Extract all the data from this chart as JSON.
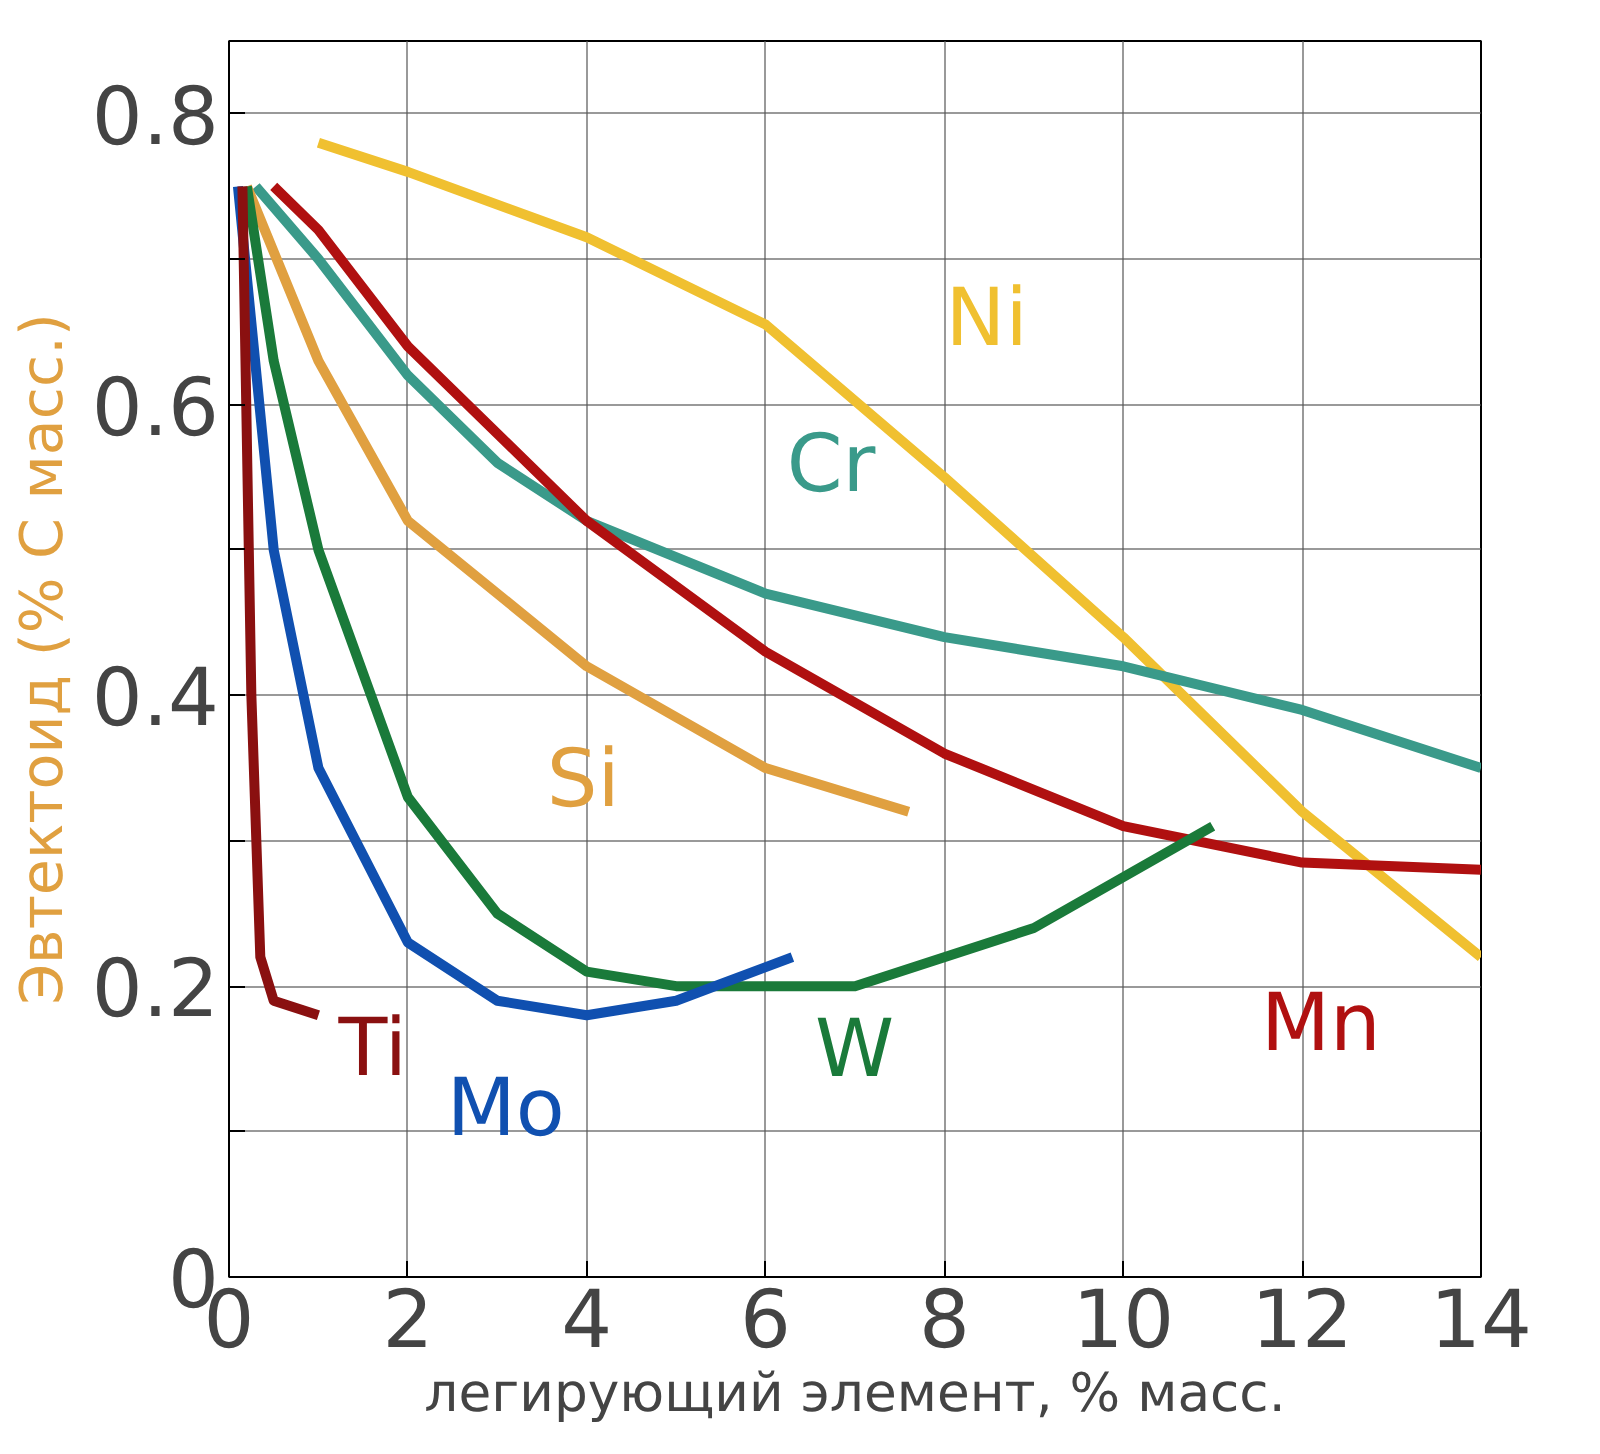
{
  "chart_data": {
    "type": "line",
    "xlabel": "легирующий элемент, % масс.",
    "ylabel": "Эвтектоид (% С масс.)",
    "xlim": [
      0,
      14
    ],
    "ylim": [
      0,
      0.85
    ],
    "xticks": [
      0,
      2,
      4,
      6,
      8,
      10,
      12,
      14
    ],
    "yticks": [
      0,
      {
        "value": 0.1,
        "label": null
      },
      0.2,
      {
        "value": 0.3,
        "label": null
      },
      0.4,
      {
        "value": 0.5,
        "label": null
      },
      0.6,
      {
        "value": 0.7,
        "label": null
      },
      0.8
    ],
    "grid": true,
    "marker": "none",
    "line_style": "solid",
    "series": [
      {
        "name": "Ni",
        "color": "#f0c030",
        "x": [
          1,
          2,
          4,
          6,
          8,
          10,
          12,
          13,
          14
        ],
        "values": [
          0.78,
          0.76,
          0.715,
          0.655,
          0.55,
          0.44,
          0.32,
          0.27,
          0.22
        ]
      },
      {
        "name": "Cr",
        "color": "#3a9a8a",
        "x": [
          0.3,
          1,
          2,
          3,
          4,
          6,
          8,
          10,
          12,
          14
        ],
        "values": [
          0.75,
          0.7,
          0.62,
          0.56,
          0.52,
          0.47,
          0.44,
          0.42,
          0.39,
          0.35
        ]
      },
      {
        "name": "Mn",
        "color": "#b01010",
        "x": [
          0.5,
          1,
          2,
          4,
          6,
          8,
          10,
          12,
          14
        ],
        "values": [
          0.75,
          0.72,
          0.64,
          0.52,
          0.43,
          0.36,
          0.31,
          0.285,
          0.28
        ]
      },
      {
        "name": "Si",
        "color": "#e0a040",
        "x": [
          0.2,
          1,
          2,
          4,
          6,
          7.6
        ],
        "values": [
          0.75,
          0.63,
          0.52,
          0.42,
          0.35,
          0.32
        ]
      },
      {
        "name": "W",
        "color": "#1a7a3a",
        "x": [
          0.2,
          0.5,
          1,
          2,
          3,
          4,
          5,
          7,
          9,
          11
        ],
        "values": [
          0.75,
          0.63,
          0.5,
          0.33,
          0.25,
          0.21,
          0.2,
          0.2,
          0.24,
          0.31
        ]
      },
      {
        "name": "Mo",
        "color": "#1050b0",
        "x": [
          0.1,
          0.5,
          1,
          2,
          3,
          4,
          5,
          6.3
        ],
        "values": [
          0.75,
          0.5,
          0.35,
          0.23,
          0.19,
          0.18,
          0.19,
          0.22
        ]
      },
      {
        "name": "Ti",
        "color": "#8a1010",
        "x": [
          0.15,
          0.25,
          0.35,
          0.5,
          1
        ],
        "values": [
          0.75,
          0.4,
          0.22,
          0.19,
          0.18
        ]
      }
    ]
  }
}
